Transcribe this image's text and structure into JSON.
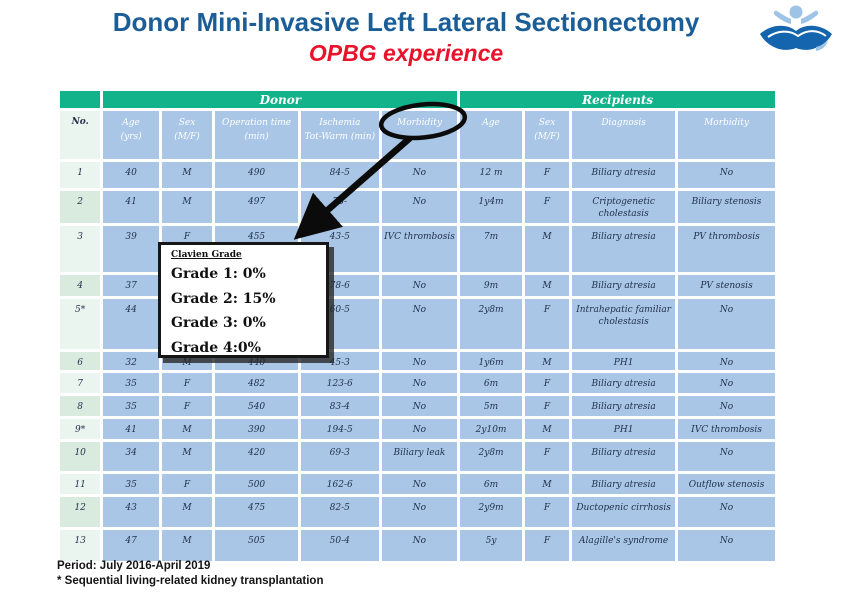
{
  "title": "Donor Mini-Invasive Left Lateral Sectionectomy",
  "subtitle": "OPBG experience",
  "logo": "opbg-hands-and-child-logo",
  "colors": {
    "green": "#12B28A",
    "cellBlue": "#A9C6E6",
    "noLight": "#EBF5EF",
    "noDark": "#D9EADF",
    "titleBlue": "#1B5E97",
    "red": "#E8132B",
    "textDark": "#22324E",
    "logoDark": "#1565AE",
    "logoLight": "#9DC3E6"
  },
  "table": {
    "group_headers": {
      "donor": "Donor",
      "recipients": "Recipients"
    },
    "columns": {
      "no": "No.",
      "donor": [
        "Age\n(yrs)",
        "Sex\n(M/F)",
        "Operation time\n(min)",
        "Ischemia\nTot-Warm (min)",
        "Morbidity"
      ],
      "recipients": [
        "Age",
        "Sex\n(M/F)",
        "Diagnosis",
        "Morbidity"
      ]
    },
    "rows": [
      {
        "no": "1",
        "d_age": "40",
        "d_sex": "M",
        "d_op": "490",
        "d_isch": "84-5",
        "d_morb": "No",
        "r_age": "12 m",
        "r_sex": "F",
        "r_diag": "Biliary atresia",
        "r_morb": "No"
      },
      {
        "no": "2",
        "d_age": "41",
        "d_sex": "M",
        "d_op": "497",
        "d_isch": "78-",
        "d_morb": "No",
        "r_age": "1y4m",
        "r_sex": "F",
        "r_diag": "Criptogenetic cholestasis",
        "r_morb": "Biliary stenosis"
      },
      {
        "no": "3",
        "d_age": "39",
        "d_sex": "F",
        "d_op": "455",
        "d_isch": "43-5",
        "d_morb": "IVC thrombosis",
        "r_age": "7m",
        "r_sex": "M",
        "r_diag": "Biliary atresia",
        "r_morb": "PV thrombosis"
      },
      {
        "no": "4",
        "d_age": "37",
        "d_sex": "",
        "d_op": "",
        "d_isch": "78-6",
        "d_morb": "No",
        "r_age": "9m",
        "r_sex": "M",
        "r_diag": "Biliary atresia",
        "r_morb": "PV stenosis"
      },
      {
        "no": "5*",
        "d_age": "44",
        "d_sex": "",
        "d_op": "",
        "d_isch": "60-5",
        "d_morb": "No",
        "r_age": "2y8m",
        "r_sex": "F",
        "r_diag": "Intrahepatic familiar cholestasis",
        "r_morb": "No"
      },
      {
        "no": "6",
        "d_age": "32",
        "d_sex": "M",
        "d_op": "440",
        "d_isch": "45-3",
        "d_morb": "No",
        "r_age": "1y6m",
        "r_sex": "M",
        "r_diag": "PH1",
        "r_morb": "No"
      },
      {
        "no": "7",
        "d_age": "35",
        "d_sex": "F",
        "d_op": "482",
        "d_isch": "123-6",
        "d_morb": "No",
        "r_age": "6m",
        "r_sex": "F",
        "r_diag": "Biliary atresia",
        "r_morb": "No"
      },
      {
        "no": "8",
        "d_age": "35",
        "d_sex": "F",
        "d_op": "540",
        "d_isch": "83-4",
        "d_morb": "No",
        "r_age": "5m",
        "r_sex": "F",
        "r_diag": "Biliary atresia",
        "r_morb": "No"
      },
      {
        "no": "9*",
        "d_age": "41",
        "d_sex": "M",
        "d_op": "390",
        "d_isch": "194-5",
        "d_morb": "No",
        "r_age": "2y10m",
        "r_sex": "M",
        "r_diag": "PH1",
        "r_morb": "IVC thrombosis"
      },
      {
        "no": "10",
        "d_age": "34",
        "d_sex": "M",
        "d_op": "420",
        "d_isch": "69-3",
        "d_morb": "Biliary leak",
        "r_age": "2y8m",
        "r_sex": "F",
        "r_diag": "Biliary atresia",
        "r_morb": "No"
      },
      {
        "no": "11",
        "d_age": "35",
        "d_sex": "F",
        "d_op": "500",
        "d_isch": "162-6",
        "d_morb": "No",
        "r_age": "6m",
        "r_sex": "M",
        "r_diag": "Biliary atresia",
        "r_morb": "Outflow stenosis"
      },
      {
        "no": "12",
        "d_age": "43",
        "d_sex": "M",
        "d_op": "475",
        "d_isch": "82-5",
        "d_morb": "No",
        "r_age": "2y9m",
        "r_sex": "F",
        "r_diag": "Ductopenic cirrhosis",
        "r_morb": "No"
      },
      {
        "no": "13",
        "d_age": "47",
        "d_sex": "M",
        "d_op": "505",
        "d_isch": "50-4",
        "d_morb": "No",
        "r_age": "5y",
        "r_sex": "F",
        "r_diag": "Alagille's syndrome",
        "r_morb": "No"
      }
    ]
  },
  "overlay": {
    "clavien_title": "Clavien Grade",
    "grades": [
      "Grade 1: 0%",
      "Grade 2: 15%",
      "Grade 3: 0%",
      "Grade 4:0%"
    ]
  },
  "footer": {
    "line1": "Period: July 2016-April 2019",
    "line2": "* Sequential living-related kidney transplantation"
  }
}
